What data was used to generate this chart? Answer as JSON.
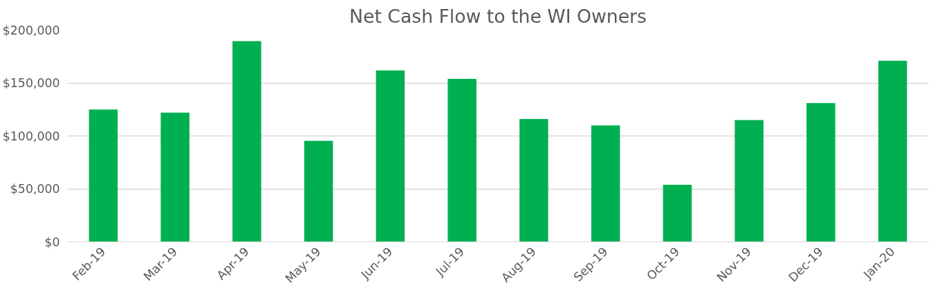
{
  "chart_data": {
    "type": "bar",
    "title": "Net Cash Flow to the WI Owners",
    "categories": [
      "Feb-19",
      "Mar-19",
      "Apr-19",
      "May-19",
      "Jun-19",
      "Jul-19",
      "Aug-19",
      "Sep-19",
      "Oct-19",
      "Nov-19",
      "Dec-19",
      "Jan-20"
    ],
    "values": [
      125000,
      122000,
      189500,
      95500,
      162000,
      154000,
      116000,
      110000,
      54000,
      115000,
      131000,
      171000
    ],
    "color": "#00b050",
    "ylim": [
      0,
      200000
    ],
    "yticks": [
      {
        "value": 0,
        "label": "$0"
      },
      {
        "value": 50000,
        "label": "$50,000"
      },
      {
        "value": 100000,
        "label": "$100,000"
      },
      {
        "value": 150000,
        "label": "$150,000"
      },
      {
        "value": 200000,
        "label": "$200,000"
      }
    ],
    "grid": "y"
  }
}
